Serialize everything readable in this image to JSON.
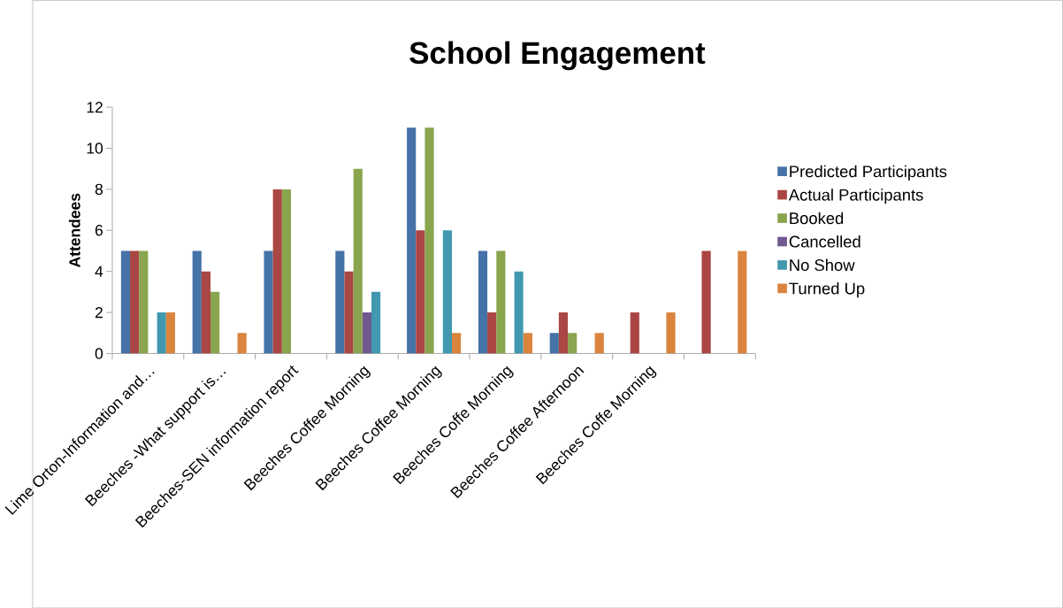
{
  "chart_data": {
    "type": "bar",
    "title": "School Engagement",
    "ylabel": "Attendees",
    "categories": [
      "Lime Orton-Information and…",
      "Beeches -What support is…",
      "Beeches-SEN information report",
      "Beeches Coffee Morning",
      "Beeches Coffee Morning",
      "Beeches Coffe Morning",
      "Beeches Coffee Afternoon",
      "Beeches Coffe Morning",
      null
    ],
    "series": [
      {
        "name": "Predicted Participants",
        "color": "#4572a7",
        "values": [
          5,
          5,
          5,
          5,
          11,
          5,
          1,
          null,
          null
        ]
      },
      {
        "name": "Actual Participants",
        "color": "#aa4643",
        "values": [
          5,
          4,
          8,
          4,
          6,
          2,
          2,
          2,
          5
        ]
      },
      {
        "name": "Booked",
        "color": "#89a54e",
        "values": [
          5,
          3,
          8,
          9,
          11,
          5,
          1,
          null,
          null
        ]
      },
      {
        "name": "Cancelled",
        "color": "#71588f",
        "values": [
          null,
          null,
          null,
          2,
          null,
          null,
          null,
          null,
          null
        ]
      },
      {
        "name": "No Show",
        "color": "#4198af",
        "values": [
          2,
          null,
          null,
          3,
          6,
          4,
          null,
          null,
          null
        ]
      },
      {
        "name": "Turned Up",
        "color": "#db843d",
        "values": [
          2,
          1,
          null,
          null,
          1,
          1,
          1,
          2,
          5
        ]
      }
    ],
    "ylim": [
      0,
      12
    ],
    "yticks": [
      0,
      2,
      4,
      6,
      8,
      10,
      12
    ],
    "legend": "right"
  }
}
